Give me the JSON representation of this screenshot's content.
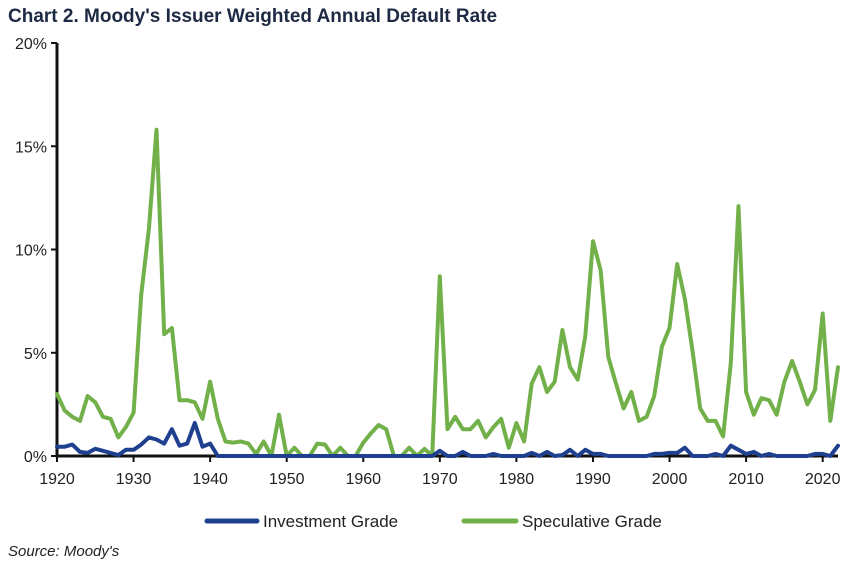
{
  "chart_data": {
    "type": "line",
    "title": "Chart 2. Moody's Issuer Weighted Annual Default Rate",
    "xlabel": "",
    "ylabel": "",
    "xlim": [
      1920,
      2022
    ],
    "ylim": [
      0,
      20
    ],
    "x_ticks": [
      1920,
      1930,
      1940,
      1950,
      1960,
      1970,
      1980,
      1990,
      2000,
      2010,
      2020
    ],
    "y_ticks": [
      0,
      5,
      10,
      15,
      20
    ],
    "y_tick_labels": [
      "0%",
      "5%",
      "10%",
      "15%",
      "20%"
    ],
    "grid": false,
    "legend_position": "bottom",
    "series": [
      {
        "name": "Investment Grade",
        "color": "#1f3f8f",
        "x": [
          1920,
          1921,
          1922,
          1923,
          1924,
          1925,
          1926,
          1927,
          1928,
          1929,
          1930,
          1931,
          1932,
          1933,
          1934,
          1935,
          1936,
          1937,
          1938,
          1939,
          1940,
          1941,
          1942,
          1943,
          1944,
          1945,
          1946,
          1947,
          1948,
          1949,
          1950,
          1951,
          1952,
          1953,
          1954,
          1955,
          1956,
          1957,
          1958,
          1959,
          1960,
          1961,
          1962,
          1963,
          1964,
          1965,
          1966,
          1967,
          1968,
          1969,
          1970,
          1971,
          1972,
          1973,
          1974,
          1975,
          1976,
          1977,
          1978,
          1979,
          1980,
          1981,
          1982,
          1983,
          1984,
          1985,
          1986,
          1987,
          1988,
          1989,
          1990,
          1991,
          1992,
          1993,
          1994,
          1995,
          1996,
          1997,
          1998,
          1999,
          2000,
          2001,
          2002,
          2003,
          2004,
          2005,
          2006,
          2007,
          2008,
          2009,
          2010,
          2011,
          2012,
          2013,
          2014,
          2015,
          2016,
          2017,
          2018,
          2019,
          2020,
          2021,
          2022
        ],
        "values": [
          0.45,
          0.45,
          0.55,
          0.2,
          0.15,
          0.35,
          0.25,
          0.15,
          0.05,
          0.3,
          0.3,
          0.55,
          0.9,
          0.8,
          0.6,
          1.3,
          0.5,
          0.6,
          1.6,
          0.45,
          0.6,
          0,
          0,
          0,
          0,
          0,
          0,
          0,
          0,
          0,
          0,
          0,
          0,
          0,
          0,
          0,
          0,
          0,
          0,
          0,
          0,
          0,
          0,
          0,
          0,
          0,
          0,
          0,
          0,
          0,
          0.25,
          0,
          0,
          0.2,
          0,
          0,
          0,
          0.1,
          0,
          0,
          0,
          0,
          0.15,
          0,
          0.2,
          0,
          0.05,
          0.3,
          0,
          0.3,
          0.1,
          0.1,
          0,
          0,
          0,
          0,
          0,
          0,
          0.1,
          0.1,
          0.15,
          0.15,
          0.4,
          0,
          0,
          0,
          0.1,
          0,
          0.5,
          0.3,
          0.1,
          0.2,
          0,
          0.1,
          0,
          0,
          0,
          0,
          0,
          0.1,
          0.1,
          0,
          0.5
        ]
      },
      {
        "name": "Speculative Grade",
        "color": "#72b04a",
        "x": [
          1920,
          1921,
          1922,
          1923,
          1924,
          1925,
          1926,
          1927,
          1928,
          1929,
          1930,
          1931,
          1932,
          1933,
          1934,
          1935,
          1936,
          1937,
          1938,
          1939,
          1940,
          1941,
          1942,
          1943,
          1944,
          1945,
          1946,
          1947,
          1948,
          1949,
          1950,
          1951,
          1952,
          1953,
          1954,
          1955,
          1956,
          1957,
          1958,
          1959,
          1960,
          1961,
          1962,
          1963,
          1964,
          1965,
          1966,
          1967,
          1968,
          1969,
          1970,
          1971,
          1972,
          1973,
          1974,
          1975,
          1976,
          1977,
          1978,
          1979,
          1980,
          1981,
          1982,
          1983,
          1984,
          1985,
          1986,
          1987,
          1988,
          1989,
          1990,
          1991,
          1992,
          1993,
          1994,
          1995,
          1996,
          1997,
          1998,
          1999,
          2000,
          2001,
          2002,
          2003,
          2004,
          2005,
          2006,
          2007,
          2008,
          2009,
          2010,
          2011,
          2012,
          2013,
          2014,
          2015,
          2016,
          2017,
          2018,
          2019,
          2020,
          2021,
          2022
        ],
        "values": [
          3.0,
          2.2,
          1.9,
          1.7,
          2.9,
          2.6,
          1.9,
          1.8,
          0.9,
          1.4,
          2.1,
          7.8,
          11.0,
          15.8,
          5.9,
          6.2,
          2.7,
          2.7,
          2.6,
          1.8,
          3.6,
          1.8,
          0.7,
          0.65,
          0.7,
          0.6,
          0.1,
          0.7,
          0,
          2.0,
          0,
          0.4,
          0,
          0,
          0.6,
          0.55,
          0,
          0.4,
          0,
          0,
          0.65,
          1.1,
          1.5,
          1.3,
          0,
          0,
          0.4,
          0,
          0.35,
          0,
          8.7,
          1.3,
          1.9,
          1.3,
          1.3,
          1.7,
          0.9,
          1.4,
          1.8,
          0.4,
          1.6,
          0.7,
          3.5,
          4.3,
          3.1,
          3.6,
          6.1,
          4.3,
          3.7,
          5.8,
          10.4,
          9.0,
          4.8,
          3.5,
          2.3,
          3.1,
          1.7,
          1.9,
          2.9,
          5.3,
          6.2,
          9.3,
          7.6,
          5.1,
          2.3,
          1.7,
          1.7,
          0.95,
          4.5,
          12.1,
          3.1,
          2.0,
          2.8,
          2.7,
          2.0,
          3.6,
          4.6,
          3.6,
          2.5,
          3.2,
          6.9,
          1.7,
          4.3
        ]
      }
    ]
  },
  "source": "Source: Moody's"
}
